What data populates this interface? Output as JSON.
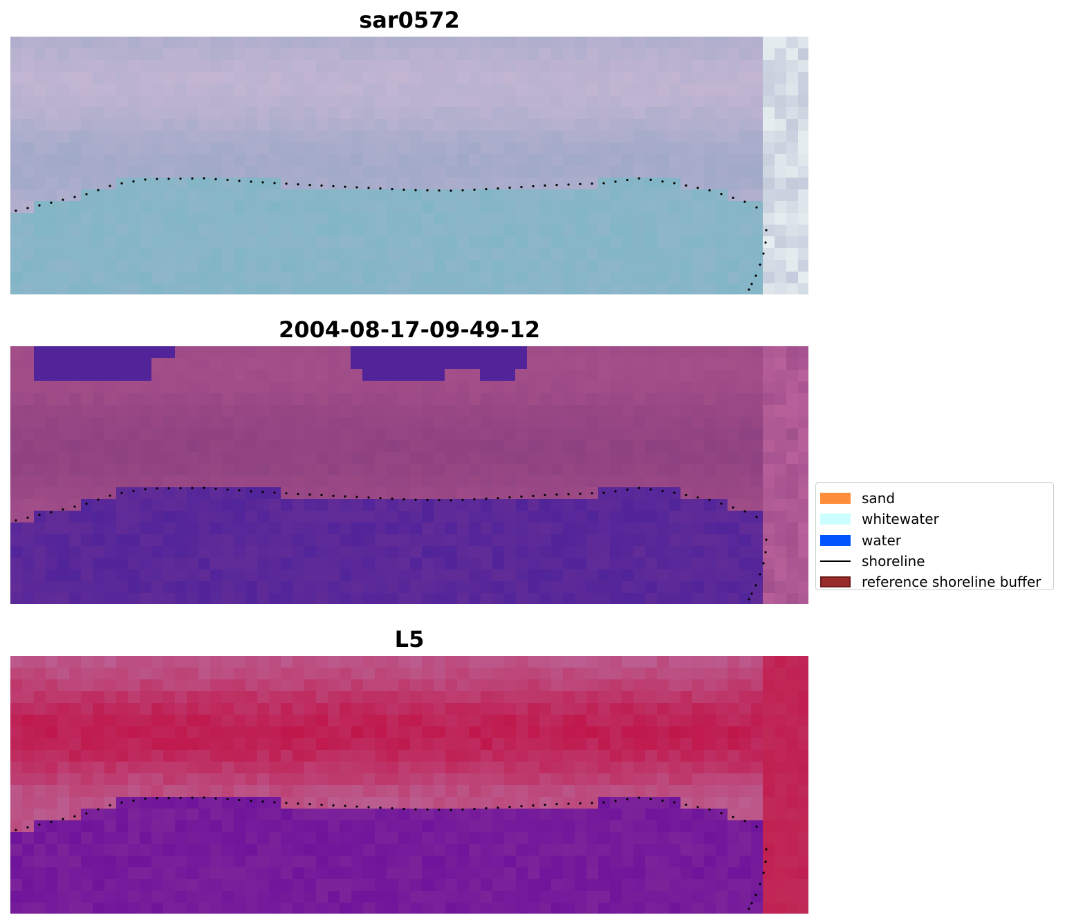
{
  "panels": [
    {
      "title": "sar0572",
      "image": "false-colour satellite image tile",
      "palette": {
        "land": "#a0a9c8",
        "land_alt": "#c4b6d3",
        "water": "#82b6c6",
        "edge": "#e7eef0"
      }
    },
    {
      "title": "2004-08-17-09-49-12",
      "image": "classified image with water mask overlay",
      "palette": {
        "land": "#8e4180",
        "land_alt": "#a6508a",
        "water": "#52249a",
        "edge": "#b8609a"
      }
    },
    {
      "title": "L5",
      "image": "water index image",
      "palette": {
        "land": "#c0164a",
        "land_alt": "#bb6496",
        "water": "#6f159b",
        "edge": "#c02a58"
      }
    }
  ],
  "legend": {
    "items": [
      {
        "label": "sand",
        "color": "#ff8c3a",
        "kind": "patch"
      },
      {
        "label": "whitewater",
        "color": "#ccffff",
        "kind": "patch"
      },
      {
        "label": "water",
        "color": "#0055ff",
        "kind": "patch"
      },
      {
        "label": "shoreline",
        "color": "#000000",
        "kind": "line"
      },
      {
        "label": "reference shoreline buffer",
        "color": "#9b2c2c",
        "kind": "patch"
      }
    ]
  }
}
